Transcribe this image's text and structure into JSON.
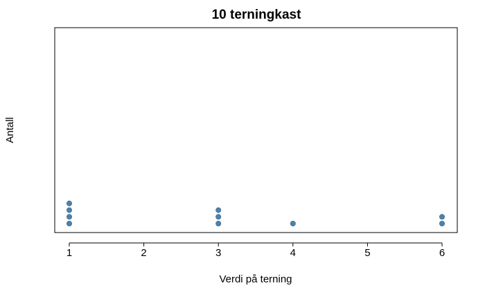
{
  "chart_data": {
    "type": "scatter",
    "subtype": "dot-plot",
    "title": "10 terningkast",
    "xlabel": "Verdi på terning",
    "ylabel": "Antall",
    "xlim": [
      1,
      6
    ],
    "ylim": [
      0,
      4
    ],
    "x_ticks": [
      "1",
      "2",
      "3",
      "4",
      "5",
      "6"
    ],
    "y_ticks_shown": false,
    "grid": false,
    "legend": "none",
    "point_color": "#4F81A8",
    "points": [
      {
        "x": 1,
        "y": 1
      },
      {
        "x": 1,
        "y": 2
      },
      {
        "x": 1,
        "y": 3
      },
      {
        "x": 1,
        "y": 4
      },
      {
        "x": 3,
        "y": 1
      },
      {
        "x": 3,
        "y": 2
      },
      {
        "x": 3,
        "y": 3
      },
      {
        "x": 4,
        "y": 1
      },
      {
        "x": 6,
        "y": 1
      },
      {
        "x": 6,
        "y": 2
      }
    ],
    "counts": [
      {
        "value": 1,
        "count": 4
      },
      {
        "value": 2,
        "count": 0
      },
      {
        "value": 3,
        "count": 3
      },
      {
        "value": 4,
        "count": 1
      },
      {
        "value": 5,
        "count": 0
      },
      {
        "value": 6,
        "count": 2
      }
    ]
  }
}
